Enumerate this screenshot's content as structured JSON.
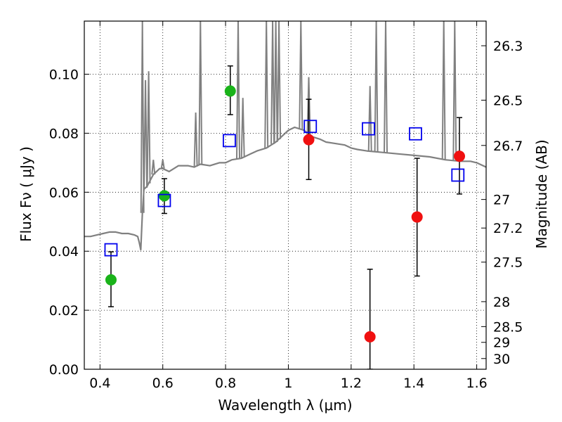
{
  "chart_data": {
    "type": "scatter",
    "title": "",
    "xlabel": "Wavelength  λ (μm)",
    "ylabel": "Flux  Fν  ( μJy )",
    "y2label": "Magnitude (AB)",
    "xlim": [
      0.35,
      1.63
    ],
    "ylim": [
      0.0,
      0.118
    ],
    "grid": true,
    "x_ticks": [
      0.4,
      0.6,
      0.8,
      1.0,
      1.2,
      1.4,
      1.6
    ],
    "x_tick_labels": [
      "0.4",
      "0.6",
      "0.8",
      "1",
      "1.2",
      "1.4",
      "1.6"
    ],
    "y_ticks": [
      0.0,
      0.02,
      0.04,
      0.06,
      0.08,
      0.1
    ],
    "y_tick_labels": [
      "0.00",
      "0.02",
      "0.04",
      "0.06",
      "0.08",
      "0.10"
    ],
    "y2_ticks": [
      26.3,
      26.5,
      26.7,
      27,
      27.2,
      27.5,
      28,
      28.5,
      29,
      30
    ],
    "y2_tick_labels": [
      "26.3",
      "26.5",
      "26.7",
      "27",
      "27.2",
      "27.5",
      "28",
      "28.5",
      "29",
      "30"
    ],
    "colors": {
      "model": "#808080",
      "green": "#1ab31a",
      "red": "#f01010",
      "square": "#0000ee",
      "errorbar": "#000000"
    },
    "series": [
      {
        "kind": "line",
        "color": "#808080",
        "x": [
          0.35,
          0.37,
          0.39,
          0.41,
          0.43,
          0.45,
          0.47,
          0.49,
          0.51,
          0.52,
          0.525,
          0.53,
          0.535,
          0.54,
          0.55,
          0.56,
          0.57,
          0.58,
          0.59,
          0.6,
          0.62,
          0.65,
          0.68,
          0.7,
          0.72,
          0.75,
          0.78,
          0.8,
          0.82,
          0.85,
          0.88,
          0.9,
          0.93,
          0.96,
          1.0,
          1.02,
          1.05,
          1.07,
          1.1,
          1.12,
          1.15,
          1.18,
          1.2,
          1.22,
          1.25,
          1.3,
          1.35,
          1.4,
          1.45,
          1.5,
          1.55,
          1.58,
          1.6,
          1.63
        ],
        "y": [
          0.045,
          0.045,
          0.0455,
          0.046,
          0.0465,
          0.0465,
          0.046,
          0.046,
          0.0455,
          0.045,
          0.043,
          0.0405,
          0.053,
          0.061,
          0.062,
          0.064,
          0.066,
          0.067,
          0.068,
          0.068,
          0.067,
          0.069,
          0.069,
          0.0685,
          0.0695,
          0.069,
          0.07,
          0.07,
          0.071,
          0.0715,
          0.073,
          0.074,
          0.075,
          0.077,
          0.081,
          0.082,
          0.081,
          0.079,
          0.078,
          0.077,
          0.0765,
          0.076,
          0.075,
          0.0745,
          0.074,
          0.0735,
          0.073,
          0.0725,
          0.072,
          0.071,
          0.0705,
          0.0705,
          0.07,
          0.0685
        ]
      },
      {
        "kind": "line-spikes",
        "color": "#808080",
        "x": [
          0.535,
          0.545,
          0.555,
          0.57,
          0.6,
          0.705,
          0.72,
          0.84,
          0.855,
          0.93,
          0.95,
          0.96,
          0.97,
          1.04,
          1.065,
          1.26,
          1.28,
          1.31,
          1.495,
          1.53
        ],
        "y": [
          0.118,
          0.098,
          0.101,
          0.071,
          0.071,
          0.087,
          0.118,
          0.118,
          0.092,
          0.118,
          0.118,
          0.118,
          0.118,
          0.118,
          0.099,
          0.096,
          0.118,
          0.118,
          0.118,
          0.118
        ]
      },
      {
        "kind": "points",
        "marker": "circle",
        "color": "#1ab31a",
        "x": [
          0.435,
          0.605,
          0.815
        ],
        "y": [
          0.0303,
          0.0588,
          0.0943
        ],
        "yerr_low": [
          0.0212,
          0.0528,
          0.0863
        ],
        "yerr_high": [
          0.0398,
          0.0646,
          0.1028
        ]
      },
      {
        "kind": "points",
        "marker": "circle",
        "color": "#f01010",
        "x": [
          1.065,
          1.26,
          1.41,
          1.545
        ],
        "y": [
          0.0778,
          0.011,
          0.0516,
          0.0722
        ],
        "yerr_low": [
          0.0643,
          0.0,
          0.0316,
          0.0594
        ],
        "yerr_high": [
          0.0915,
          0.0339,
          0.0715,
          0.0853
        ]
      },
      {
        "kind": "points",
        "marker": "open-square",
        "color": "#0000ee",
        "x": [
          0.435,
          0.605,
          0.812,
          1.07,
          1.255,
          1.405,
          1.54
        ],
        "y": [
          0.0405,
          0.0572,
          0.0775,
          0.0823,
          0.0815,
          0.0798,
          0.0658
        ]
      }
    ]
  }
}
